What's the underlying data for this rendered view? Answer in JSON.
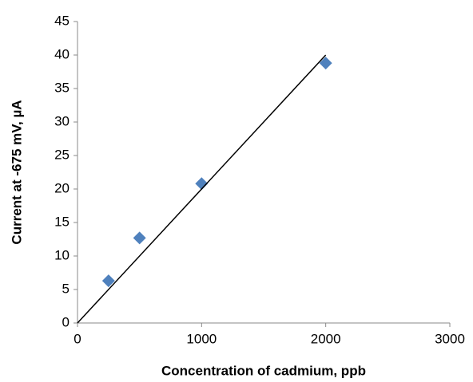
{
  "chart_data": {
    "type": "scatter",
    "x_label": "Concentration of cadmium, ppb",
    "y_label": "Current at -675 mV, µA",
    "xlim": [
      0,
      3000
    ],
    "xticks": [
      0,
      1000,
      2000,
      3000
    ],
    "ylim": [
      0,
      45
    ],
    "yticks": [
      0,
      5,
      10,
      15,
      20,
      25,
      30,
      35,
      40,
      45
    ],
    "grid": false,
    "series": [
      {
        "mode": "markers",
        "marker": "diamond",
        "color": "#4f81bd",
        "x": [
          250,
          500,
          1000,
          2000
        ],
        "values": [
          6.3,
          12.7,
          20.8,
          38.8
        ]
      },
      {
        "mode": "line",
        "color": "#000000",
        "x": [
          0,
          2000
        ],
        "values": [
          0,
          40
        ]
      }
    ]
  }
}
